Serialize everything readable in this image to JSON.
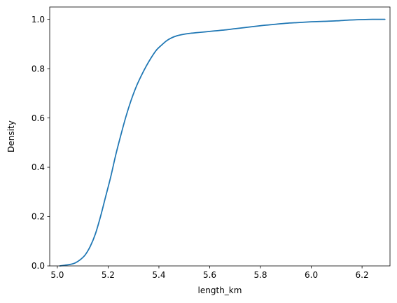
{
  "chart_data": {
    "type": "line",
    "title": "",
    "xlabel": "length_km",
    "ylabel": "Density",
    "xlim": [
      4.97,
      6.31
    ],
    "ylim": [
      0.0,
      1.05
    ],
    "grid": false,
    "legend": "none",
    "line_color": "#1f77b4",
    "x_ticks": [
      {
        "value": 5.0,
        "label": "5.0"
      },
      {
        "value": 5.2,
        "label": "5.2"
      },
      {
        "value": 5.4,
        "label": "5.4"
      },
      {
        "value": 5.6,
        "label": "5.6"
      },
      {
        "value": 5.8,
        "label": "5.8"
      },
      {
        "value": 6.0,
        "label": "6.0"
      },
      {
        "value": 6.2,
        "label": "6.2"
      }
    ],
    "y_ticks": [
      {
        "value": 0.0,
        "label": "0.0"
      },
      {
        "value": 0.2,
        "label": "0.2"
      },
      {
        "value": 0.4,
        "label": "0.4"
      },
      {
        "value": 0.6,
        "label": "0.6"
      },
      {
        "value": 0.8,
        "label": "0.8"
      },
      {
        "value": 1.0,
        "label": "1.0"
      }
    ],
    "series": [
      {
        "x": [
          5.01,
          5.03,
          5.05,
          5.07,
          5.09,
          5.11,
          5.13,
          5.15,
          5.17,
          5.19,
          5.21,
          5.23,
          5.25,
          5.27,
          5.29,
          5.31,
          5.33,
          5.35,
          5.37,
          5.39,
          5.41,
          5.43,
          5.45,
          5.47,
          5.49,
          5.52,
          5.55,
          5.58,
          5.62,
          5.66,
          5.7,
          5.75,
          5.8,
          5.85,
          5.9,
          5.95,
          6.0,
          6.05,
          6.1,
          6.15,
          6.2,
          6.24,
          6.29
        ],
        "y": [
          0.0,
          0.003,
          0.006,
          0.012,
          0.025,
          0.045,
          0.08,
          0.13,
          0.2,
          0.28,
          0.36,
          0.45,
          0.53,
          0.605,
          0.67,
          0.725,
          0.77,
          0.81,
          0.845,
          0.875,
          0.895,
          0.913,
          0.925,
          0.933,
          0.938,
          0.943,
          0.946,
          0.949,
          0.953,
          0.957,
          0.962,
          0.968,
          0.974,
          0.979,
          0.984,
          0.987,
          0.99,
          0.992,
          0.994,
          0.997,
          0.999,
          1.0,
          1.0
        ]
      }
    ]
  }
}
